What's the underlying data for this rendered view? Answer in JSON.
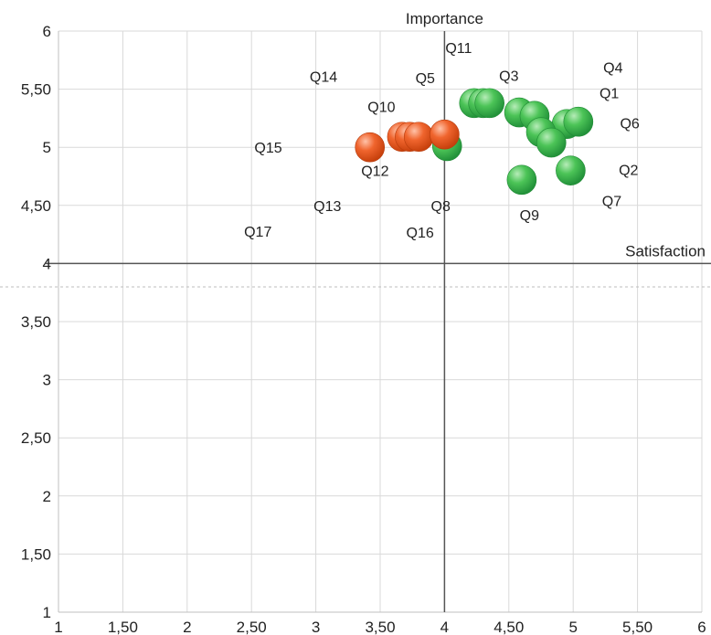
{
  "chart_data": {
    "type": "scatter",
    "xlabel": "Satisfaction",
    "ylabel": "Importance",
    "xlim": [
      1,
      6
    ],
    "ylim": [
      1,
      6
    ],
    "grid": true,
    "x_ticks": [
      1,
      1.5,
      2,
      2.5,
      3,
      3.5,
      4,
      4.5,
      5,
      5.5,
      6
    ],
    "x_tick_labels": [
      "1",
      "1,50",
      "2",
      "2,50",
      "3",
      "3,50",
      "4",
      "4,50",
      "5",
      "5,50",
      "6"
    ],
    "y_ticks": [
      1,
      1.5,
      2,
      2.5,
      3,
      3.5,
      4,
      4.5,
      5,
      5.5,
      6
    ],
    "y_tick_labels": [
      "1",
      "1,50",
      "2",
      "2,50",
      "3",
      "3,50",
      "4",
      "4,50",
      "5",
      "5,50",
      "6"
    ],
    "axis_cross": {
      "x": 4,
      "y": 4
    },
    "colors": {
      "green": "#3cb24a",
      "orange": "#ee5a24"
    },
    "points": [
      {
        "x": 4.23,
        "y": 5.38,
        "color": "green"
      },
      {
        "x": 4.3,
        "y": 5.38,
        "color": "green"
      },
      {
        "x": 4.35,
        "y": 5.38,
        "color": "green"
      },
      {
        "x": 4.58,
        "y": 5.3,
        "color": "green"
      },
      {
        "x": 4.7,
        "y": 5.27,
        "color": "green"
      },
      {
        "x": 4.95,
        "y": 5.2,
        "color": "green"
      },
      {
        "x": 5.04,
        "y": 5.22,
        "color": "green"
      },
      {
        "x": 4.75,
        "y": 5.13,
        "color": "green"
      },
      {
        "x": 4.83,
        "y": 5.04,
        "color": "green"
      },
      {
        "x": 4.98,
        "y": 4.8,
        "color": "green"
      },
      {
        "x": 4.6,
        "y": 4.72,
        "color": "green"
      },
      {
        "x": 4.02,
        "y": 5.01,
        "color": "green"
      },
      {
        "x": 3.42,
        "y": 5.0,
        "color": "orange"
      },
      {
        "x": 3.67,
        "y": 5.09,
        "color": "orange"
      },
      {
        "x": 3.73,
        "y": 5.09,
        "color": "orange"
      },
      {
        "x": 3.8,
        "y": 5.09,
        "color": "orange"
      },
      {
        "x": 4.0,
        "y": 5.11,
        "color": "orange"
      }
    ],
    "labels": [
      {
        "text": "Q1",
        "x": 5.28,
        "y": 5.47
      },
      {
        "text": "Q2",
        "x": 5.43,
        "y": 4.81
      },
      {
        "text": "Q3",
        "x": 4.5,
        "y": 5.62
      },
      {
        "text": "Q4",
        "x": 5.31,
        "y": 5.69
      },
      {
        "text": "Q5",
        "x": 3.85,
        "y": 5.6
      },
      {
        "text": "Q6",
        "x": 5.44,
        "y": 5.21
      },
      {
        "text": "Q7",
        "x": 5.3,
        "y": 4.54
      },
      {
        "text": "Q8",
        "x": 3.97,
        "y": 4.5
      },
      {
        "text": "Q9",
        "x": 4.66,
        "y": 4.42
      },
      {
        "text": "Q10",
        "x": 3.51,
        "y": 5.35
      },
      {
        "text": "Q11",
        "x": 4.11,
        "y": 5.86
      },
      {
        "text": "Q12",
        "x": 3.46,
        "y": 4.8
      },
      {
        "text": "Q13",
        "x": 3.09,
        "y": 4.5
      },
      {
        "text": "Q14",
        "x": 3.06,
        "y": 5.61
      },
      {
        "text": "Q15",
        "x": 2.63,
        "y": 5.0
      },
      {
        "text": "Q16",
        "x": 3.81,
        "y": 4.27
      },
      {
        "text": "Q17",
        "x": 2.55,
        "y": 4.28
      }
    ]
  }
}
